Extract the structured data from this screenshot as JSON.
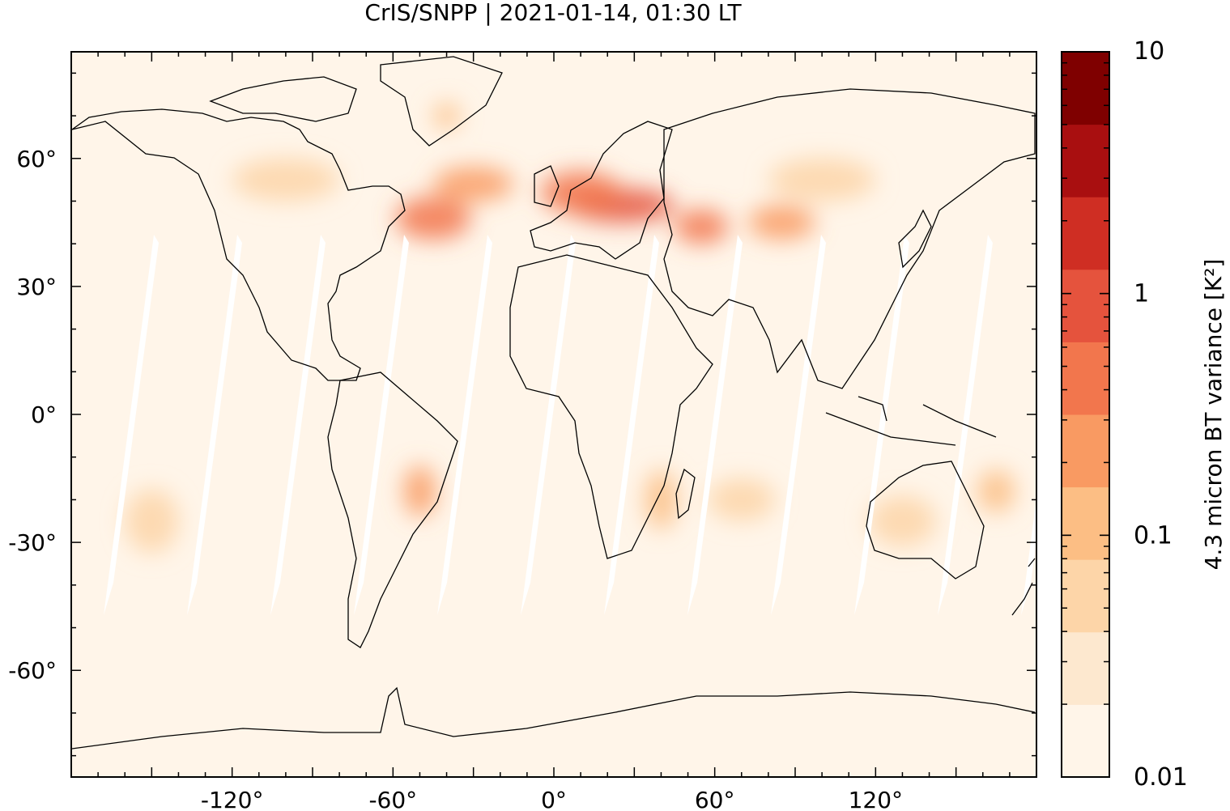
{
  "title": "CrIS/SNPP | 2021-01-14, 01:30 LT",
  "colors": {
    "background": "#fff5e9",
    "swath_gap": "#ffffff",
    "coastline": "#000000",
    "levels": [
      "#fff5e9",
      "#fde8cf",
      "#fdd5a8",
      "#fcbe84",
      "#f99a62",
      "#f2764d",
      "#e5533d",
      "#cf2e23",
      "#a90f10",
      "#7f0000"
    ]
  },
  "map": {
    "lon_range": [
      -180,
      180
    ],
    "lat_range": [
      -85,
      85
    ],
    "lon_ticks": [
      {
        "value": -120,
        "label": "-120°"
      },
      {
        "value": -60,
        "label": "-60°"
      },
      {
        "value": 0,
        "label": "0°"
      },
      {
        "value": 60,
        "label": "60°"
      },
      {
        "value": 120,
        "label": "120°"
      }
    ],
    "lat_ticks": [
      {
        "value": 60,
        "label": "60°"
      },
      {
        "value": 30,
        "label": "30°"
      },
      {
        "value": 0,
        "label": "0°"
      },
      {
        "value": -30,
        "label": "-30°"
      },
      {
        "value": -60,
        "label": "-60°"
      }
    ],
    "hotspots": [
      {
        "lon": 25,
        "lat": 49,
        "level": 6,
        "w": 40,
        "h": 8
      },
      {
        "lon": 10,
        "lat": 52,
        "level": 5,
        "w": 30,
        "h": 10
      },
      {
        "lon": -45,
        "lat": 46,
        "level": 5,
        "w": 28,
        "h": 10
      },
      {
        "lon": 55,
        "lat": 44,
        "level": 5,
        "w": 20,
        "h": 8
      },
      {
        "lon": 85,
        "lat": 45,
        "level": 4,
        "w": 25,
        "h": 8
      },
      {
        "lon": -30,
        "lat": 54,
        "level": 4,
        "w": 30,
        "h": 8
      },
      {
        "lon": -50,
        "lat": -18,
        "level": 4,
        "w": 12,
        "h": 12
      },
      {
        "lon": 40,
        "lat": -20,
        "level": 3,
        "w": 12,
        "h": 14
      },
      {
        "lon": 165,
        "lat": -18,
        "level": 3,
        "w": 14,
        "h": 10
      },
      {
        "lon": 130,
        "lat": -25,
        "level": 2,
        "w": 25,
        "h": 12
      },
      {
        "lon": -150,
        "lat": -25,
        "level": 2,
        "w": 20,
        "h": 15
      },
      {
        "lon": 70,
        "lat": -20,
        "level": 2,
        "w": 25,
        "h": 10
      },
      {
        "lon": 100,
        "lat": 55,
        "level": 2,
        "w": 40,
        "h": 10
      },
      {
        "lon": -100,
        "lat": 55,
        "level": 2,
        "w": 40,
        "h": 10
      },
      {
        "lon": -40,
        "lat": 70,
        "level": 3,
        "w": 10,
        "h": 6
      }
    ]
  },
  "colorbar": {
    "title": "4.3 micron BT variance [K²]",
    "scale": "log",
    "range": [
      0.01,
      10
    ],
    "labels": [
      {
        "value": 10,
        "label": "10"
      },
      {
        "value": 1,
        "label": "1"
      },
      {
        "value": 0.1,
        "label": "0.1"
      },
      {
        "value": 0.01,
        "label": "0.01"
      }
    ]
  }
}
